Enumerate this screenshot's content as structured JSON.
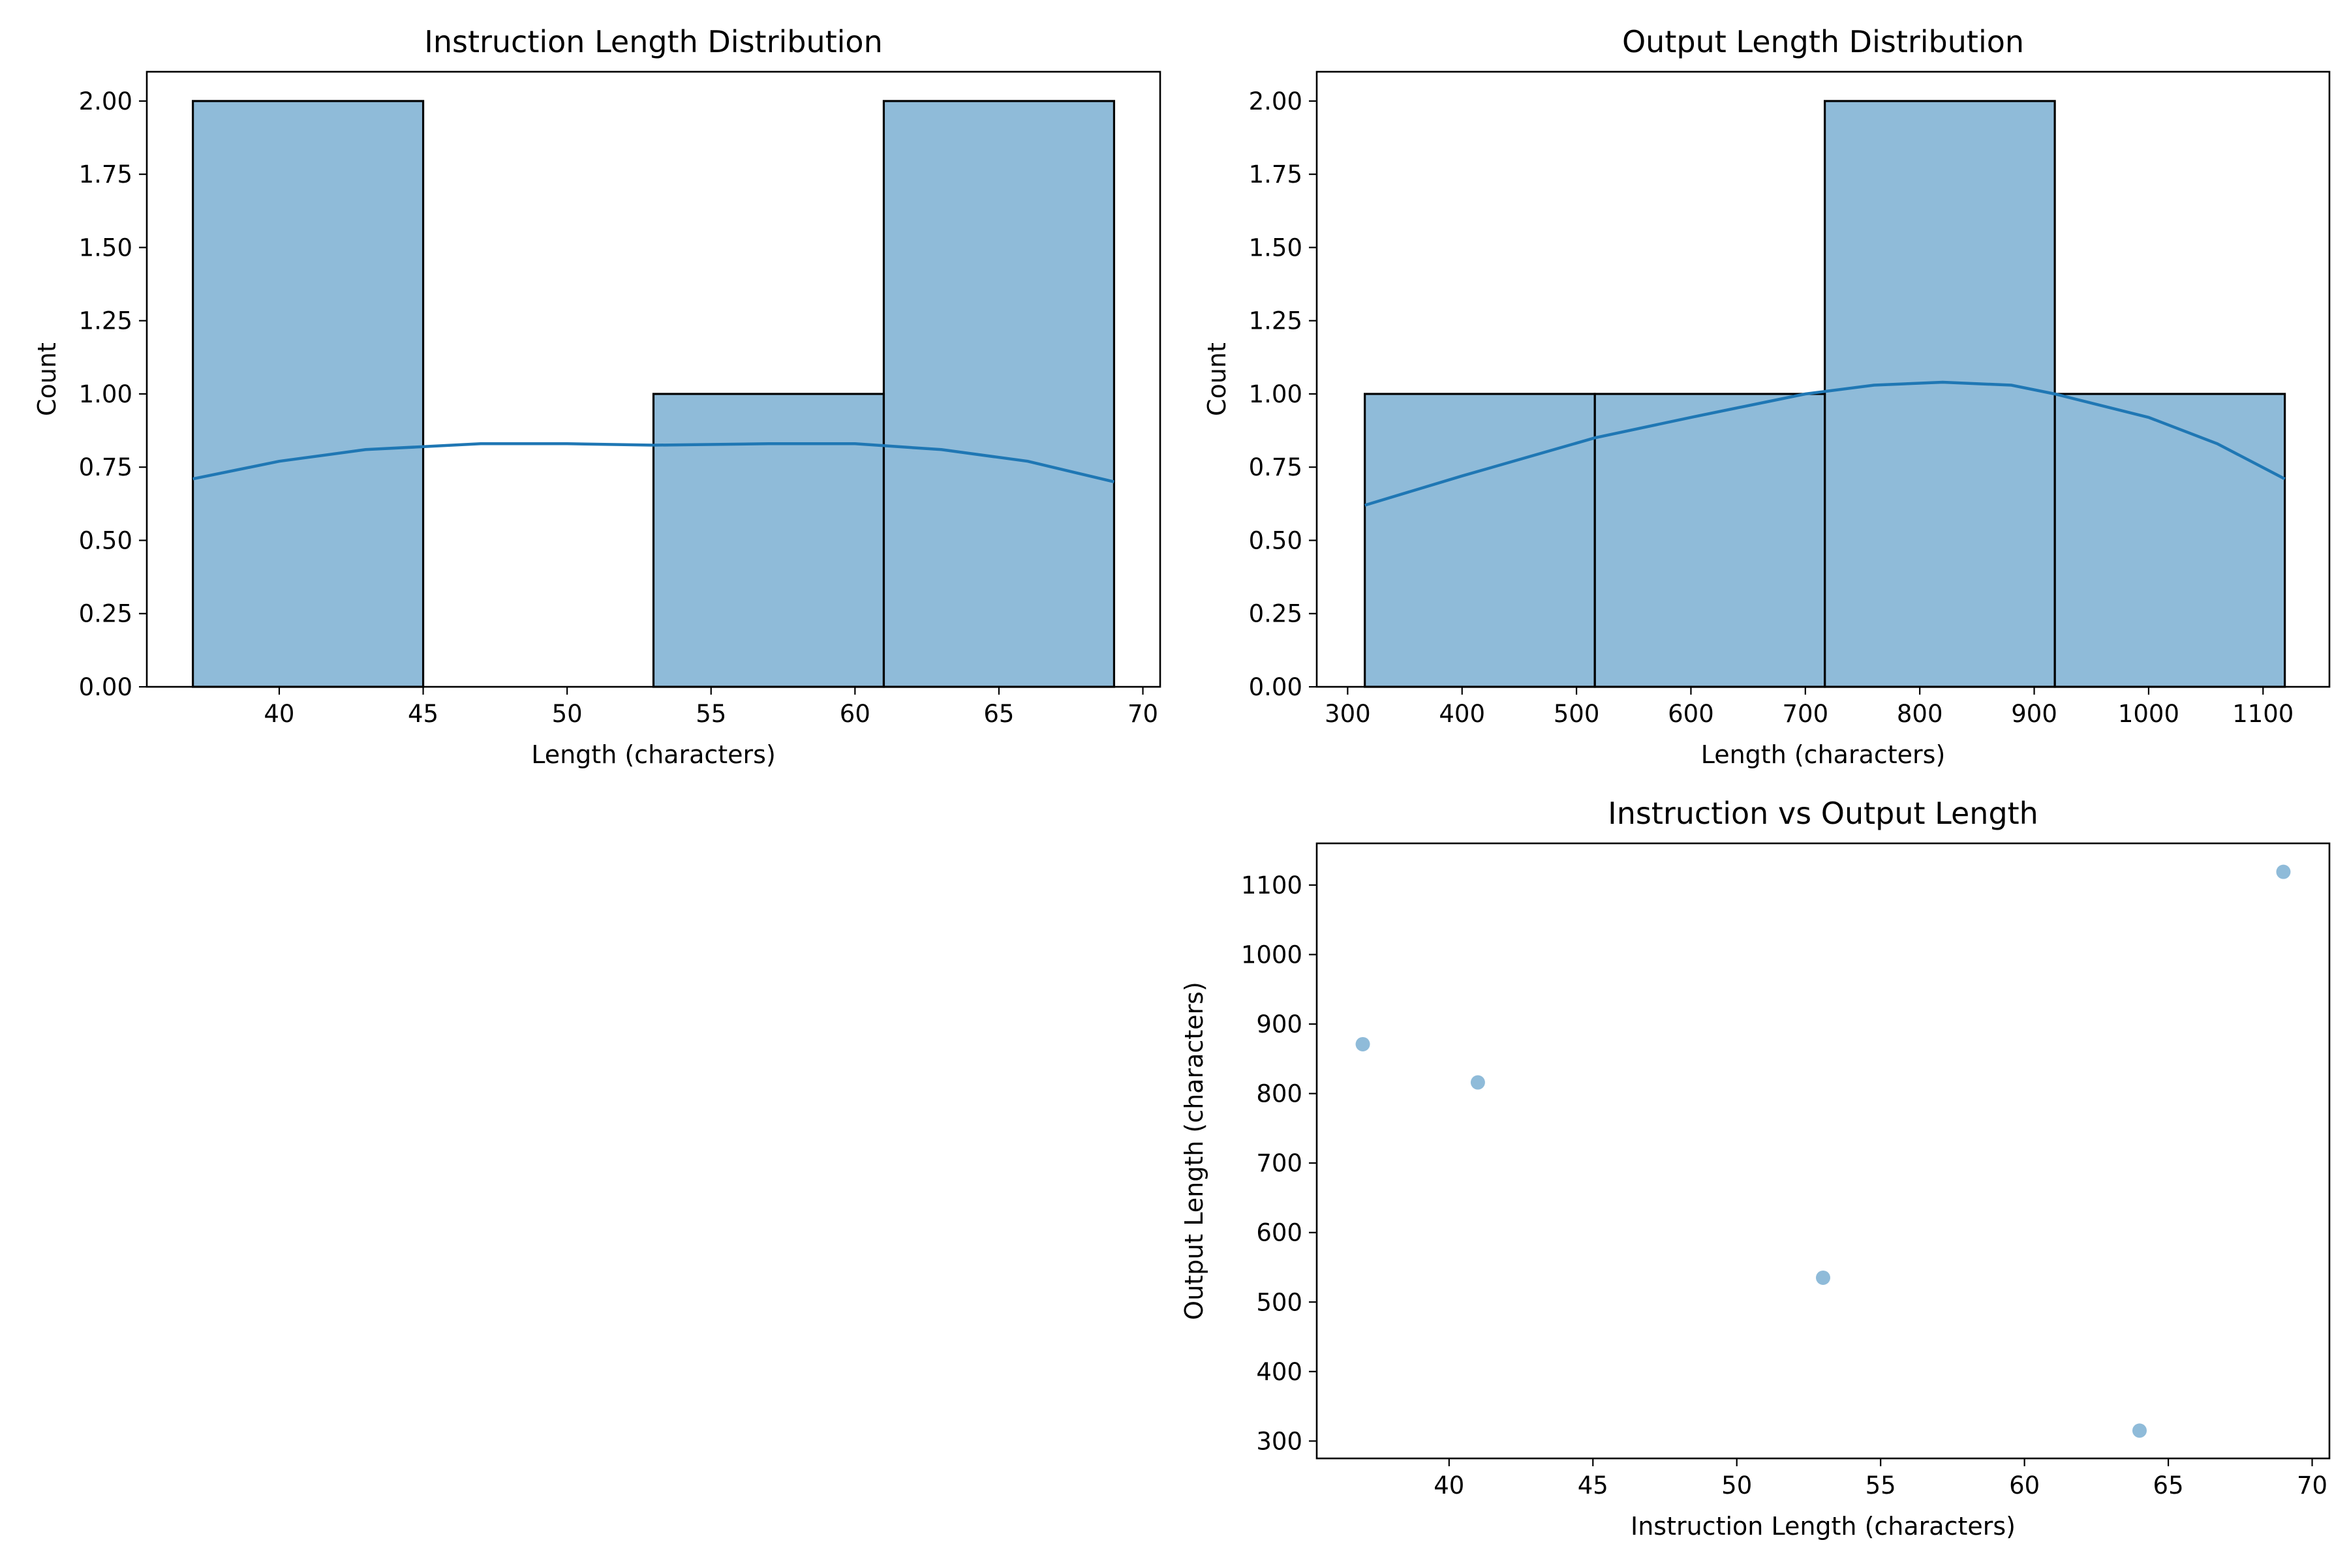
{
  "chart_data": [
    {
      "type": "bar",
      "subtype": "histogram-with-kde",
      "title": "Instruction Length Distribution",
      "xlabel": "Length (characters)",
      "ylabel": "Count",
      "xlim": [
        35.4,
        70.6
      ],
      "ylim": [
        0,
        2.1
      ],
      "xticks": [
        40,
        45,
        50,
        55,
        60,
        65,
        70
      ],
      "yticks": [
        "0.00",
        "0.25",
        "0.50",
        "0.75",
        "1.00",
        "1.25",
        "1.50",
        "1.75",
        "2.00"
      ],
      "bins": [
        {
          "x0": 37,
          "x1": 45,
          "value": 2
        },
        {
          "x0": 45,
          "x1": 53,
          "value": 0
        },
        {
          "x0": 53,
          "x1": 61,
          "value": 1
        },
        {
          "x0": 61,
          "x1": 69,
          "value": 2
        }
      ],
      "kde": [
        [
          37,
          0.71
        ],
        [
          40,
          0.77
        ],
        [
          43,
          0.81
        ],
        [
          47,
          0.83
        ],
        [
          50,
          0.83
        ],
        [
          53,
          0.825
        ],
        [
          57,
          0.83
        ],
        [
          60,
          0.83
        ],
        [
          63,
          0.81
        ],
        [
          66,
          0.77
        ],
        [
          69,
          0.7
        ]
      ],
      "grid": false
    },
    {
      "type": "bar",
      "subtype": "histogram-with-kde",
      "title": "Output Length Distribution",
      "xlabel": "Length (characters)",
      "ylabel": "Count",
      "xlim": [
        273,
        1158
      ],
      "ylim": [
        0,
        2.1
      ],
      "xticks": [
        300,
        400,
        500,
        600,
        700,
        800,
        900,
        1000,
        1100
      ],
      "yticks": [
        "0.00",
        "0.25",
        "0.50",
        "0.75",
        "1.00",
        "1.25",
        "1.50",
        "1.75",
        "2.00"
      ],
      "bins": [
        {
          "x0": 315,
          "x1": 516,
          "value": 1
        },
        {
          "x0": 516,
          "x1": 717,
          "value": 1
        },
        {
          "x0": 717,
          "x1": 918,
          "value": 2
        },
        {
          "x0": 918,
          "x1": 1119,
          "value": 1
        }
      ],
      "kde": [
        [
          315,
          0.62
        ],
        [
          400,
          0.72
        ],
        [
          516,
          0.85
        ],
        [
          600,
          0.92
        ],
        [
          700,
          1.0
        ],
        [
          760,
          1.03
        ],
        [
          820,
          1.04
        ],
        [
          880,
          1.03
        ],
        [
          918,
          1.0
        ],
        [
          1000,
          0.92
        ],
        [
          1060,
          0.83
        ],
        [
          1119,
          0.71
        ]
      ],
      "grid": false
    },
    {
      "type": "scatter",
      "title": "Instruction vs Output Length",
      "xlabel": "Instruction Length (characters)",
      "ylabel": "Output Length (characters)",
      "xlim": [
        35.4,
        70.6
      ],
      "ylim": [
        275,
        1160
      ],
      "xticks": [
        40,
        45,
        50,
        55,
        60,
        65,
        70
      ],
      "yticks": [
        300,
        400,
        500,
        600,
        700,
        800,
        900,
        1000,
        1100
      ],
      "points": [
        {
          "x": 37,
          "y": 871
        },
        {
          "x": 41,
          "y": 816
        },
        {
          "x": 53,
          "y": 535
        },
        {
          "x": 64,
          "y": 315
        },
        {
          "x": 69,
          "y": 1119
        }
      ],
      "grid": false
    }
  ]
}
